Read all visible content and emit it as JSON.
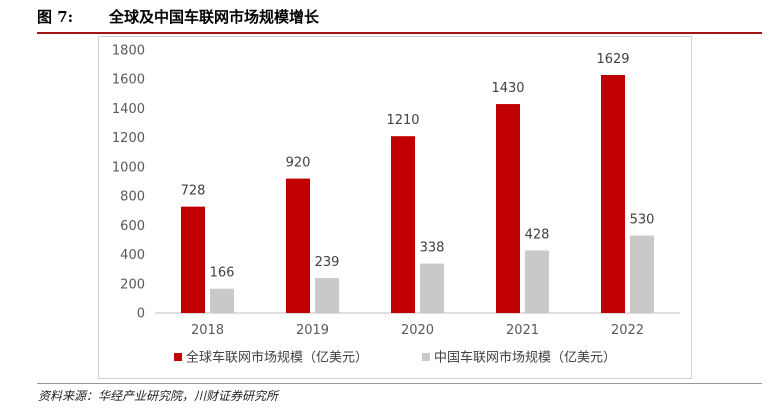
{
  "figure": {
    "number": "图 7:",
    "title": "全球及中国车联网市场规模增长"
  },
  "source": "资料来源：华经产业研究院，川财证券研究所",
  "colors": {
    "global": "#c00000",
    "china": "#c9c9c9",
    "rule": "#a31515"
  },
  "chart_data": {
    "type": "bar",
    "title": "全球及中国车联网市场规模增长",
    "categories": [
      "2018",
      "2019",
      "2020",
      "2021",
      "2022"
    ],
    "series": [
      {
        "name": "全球车联网市场规模（亿美元）",
        "values": [
          728,
          920,
          1210,
          1430,
          1629
        ]
      },
      {
        "name": "中国车联网市场规模（亿美元）",
        "values": [
          166,
          239,
          338,
          428,
          530
        ]
      }
    ],
    "ylim": [
      0,
      1800
    ],
    "yticks": [
      0,
      200,
      400,
      600,
      800,
      1000,
      1200,
      1400,
      1600,
      1800
    ],
    "xlabel": "",
    "ylabel": "",
    "grid": false,
    "legend": "bottom"
  }
}
